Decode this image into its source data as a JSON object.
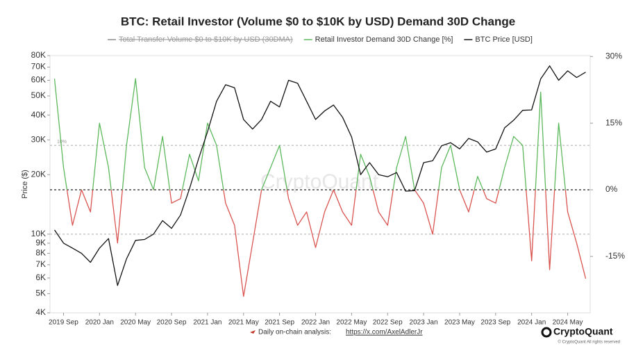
{
  "chart_data": {
    "type": "line",
    "title": "BTC: Retail Investor (Volume $0 to $10K by USD) Demand 30D Change",
    "hidden_series": {
      "name": "Total Transfer Volume $0 to $10K by USD (30DMA)",
      "color": "#8a8a8a"
    },
    "categories": [
      null,
      "2019 Sep",
      null,
      null,
      null,
      "2020 Jan",
      null,
      null,
      null,
      "2020 May",
      null,
      null,
      null,
      "2020 Sep",
      null,
      null,
      null,
      "2021 Jan",
      null,
      null,
      null,
      "2021 May",
      null,
      null,
      null,
      "2021 Sep",
      null,
      null,
      null,
      "2022 Jan",
      null,
      null,
      null,
      "2022 May",
      null,
      null,
      null,
      "2022 Sep",
      null,
      null,
      null,
      "2023 Jan",
      null,
      null,
      null,
      "2023 May",
      null,
      null,
      null,
      "2023 Sep",
      null,
      null,
      null,
      "2024 Jan",
      null,
      null,
      null,
      "2024 May",
      null,
      null
    ],
    "series": [
      {
        "name": "Retail Investor Demand 30D Change [%]",
        "color": "#5cb85c",
        "negative_color": "#d9534f",
        "axis": "y2",
        "values": [
          25,
          5,
          -8,
          0,
          -5,
          15,
          5,
          -12,
          10,
          25,
          5,
          0,
          12,
          -3,
          -2,
          8,
          2,
          15,
          10,
          -3,
          -8,
          -24,
          -12,
          0,
          5,
          10,
          -2,
          -8,
          -5,
          -13,
          -5,
          0,
          -5,
          -8,
          8,
          3,
          -5,
          -8,
          5,
          12,
          0,
          -3,
          -10,
          5,
          10,
          0,
          -5,
          3,
          -2,
          -3,
          5,
          12,
          10,
          -16,
          22,
          -18,
          15,
          -5,
          -12,
          -20
        ]
      },
      {
        "name": "BTC Price [USD]",
        "color": "#111111",
        "axis": "y",
        "values": [
          10500,
          9000,
          8500,
          8000,
          7200,
          8500,
          9500,
          5500,
          7500,
          9300,
          9400,
          10000,
          11700,
          10700,
          12500,
          17000,
          24000,
          33000,
          47000,
          57000,
          55000,
          38000,
          34000,
          38000,
          47000,
          44000,
          60000,
          58000,
          47000,
          38000,
          42000,
          45000,
          39000,
          31000,
          20000,
          23000,
          20000,
          19500,
          20500,
          16500,
          16600,
          23000,
          23500,
          28000,
          29000,
          27000,
          30500,
          29300,
          26000,
          27000,
          34500,
          37700,
          42300,
          42500,
          61000,
          71000,
          60000,
          67000,
          62000,
          66000
        ]
      }
    ],
    "ylabel": "Price ($)",
    "log_y": true,
    "ylim": [
      4000,
      80000
    ],
    "yticks": [
      {
        "value": 4000,
        "label": "4K"
      },
      {
        "value": 5000,
        "label": "5K"
      },
      {
        "value": 6000,
        "label": "6K"
      },
      {
        "value": 7000,
        "label": "7K"
      },
      {
        "value": 8000,
        "label": "8K"
      },
      {
        "value": 9000,
        "label": "9K"
      },
      {
        "value": 10000,
        "label": "10K"
      },
      {
        "value": 20000,
        "label": "20K"
      },
      {
        "value": 30000,
        "label": "30K"
      },
      {
        "value": 40000,
        "label": "40K"
      },
      {
        "value": 50000,
        "label": "50K"
      },
      {
        "value": 60000,
        "label": "60K"
      },
      {
        "value": 70000,
        "label": "70K"
      },
      {
        "value": 80000,
        "label": "80K"
      }
    ],
    "y2lim": [
      -27.7,
      30.2
    ],
    "y2ticks": [
      {
        "value": -15,
        "label": "-15%"
      },
      {
        "value": 0,
        "label": "0%"
      },
      {
        "value": 15,
        "label": "15%"
      },
      {
        "value": 30,
        "label": "30%"
      }
    ],
    "reference_lines": [
      {
        "value": 10,
        "label": "10%"
      },
      {
        "value": 0
      },
      {
        "value": -10
      }
    ],
    "watermark": "CryptoQuant",
    "footer": {
      "note": "Daily on-chain analysis:",
      "link": "https://x.com/AxelAdlerJr",
      "brand": "CryptoQuant",
      "copyright": "© CryptoQuant All rights reserved"
    }
  }
}
